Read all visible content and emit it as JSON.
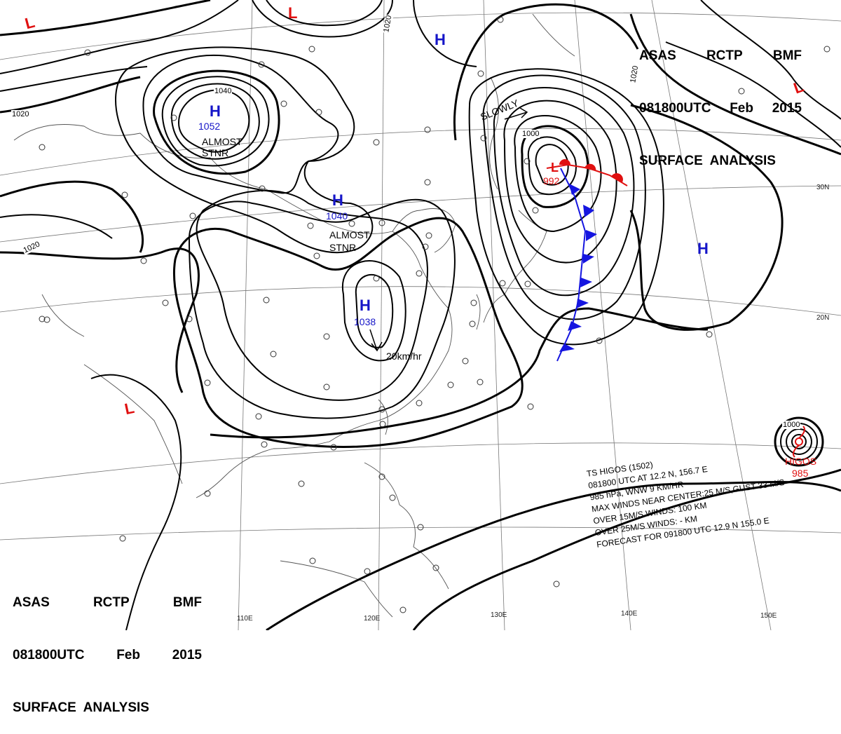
{
  "header_top": {
    "line1": [
      "ASAS",
      "RCTP",
      "BMF"
    ],
    "line2": [
      "081800UTC",
      "Feb",
      "2015"
    ],
    "line3": "SURFACE  ANALYSIS"
  },
  "header_bottom": {
    "line1": [
      "ASAS",
      "RCTP",
      "BMF"
    ],
    "line2": [
      "081800UTC",
      "Feb",
      "2015"
    ],
    "line3": "SURFACE  ANALYSIS"
  },
  "pressure_systems": {
    "high_mongolia": {
      "symbol": "H",
      "pressure": "1052",
      "note": "ALMOST\nSTNR"
    },
    "high_central": {
      "symbol": "H",
      "pressure": "1040",
      "note": "ALMOST\nSTNR"
    },
    "high_china_coast": {
      "symbol": "H",
      "pressure": "1038",
      "motion": "20km/hr"
    },
    "high_north": {
      "symbol": "H"
    },
    "high_pacific": {
      "symbol": "H"
    },
    "low_japan": {
      "symbol": "L",
      "pressure": "992",
      "motion": "SLOWLY"
    },
    "low_topleft": {
      "symbol": "L"
    },
    "low_top": {
      "symbol": "L"
    },
    "low_west": {
      "symbol": "L"
    },
    "low_northeast": {
      "symbol": "L"
    },
    "typhoon_higos": {
      "name": "HIGOS",
      "pressure": "985"
    }
  },
  "isobar_labels": [
    "1020",
    "1040",
    "1020",
    "1020",
    "1020",
    "1000",
    "1000"
  ],
  "longitude_labels": [
    "110E",
    "120E",
    "130E",
    "140E",
    "150E"
  ],
  "latitude_labels": [
    "30N",
    "20N"
  ],
  "typhoon_bulletin": [
    "TS  HIGOS  (1502)",
    "081800 UTC  AT 12.2 N, 156.7 E",
    "985 hPa, WNW  9 KM/HR",
    "MAX WINDS NEAR CENTER:25 M/S,GUST 33 M/S",
    "OVER 15M/S WINDS: 100 KM",
    "OVER 25M/S WINDS: - KM",
    "FORECAST FOR 091800 UTC 12.9 N 155.0 E"
  ],
  "colors": {
    "high": "#1515c8",
    "low": "#e01010",
    "cold_front": "#1515e0",
    "warm_front": "#e01010",
    "isobar": "#000000"
  }
}
